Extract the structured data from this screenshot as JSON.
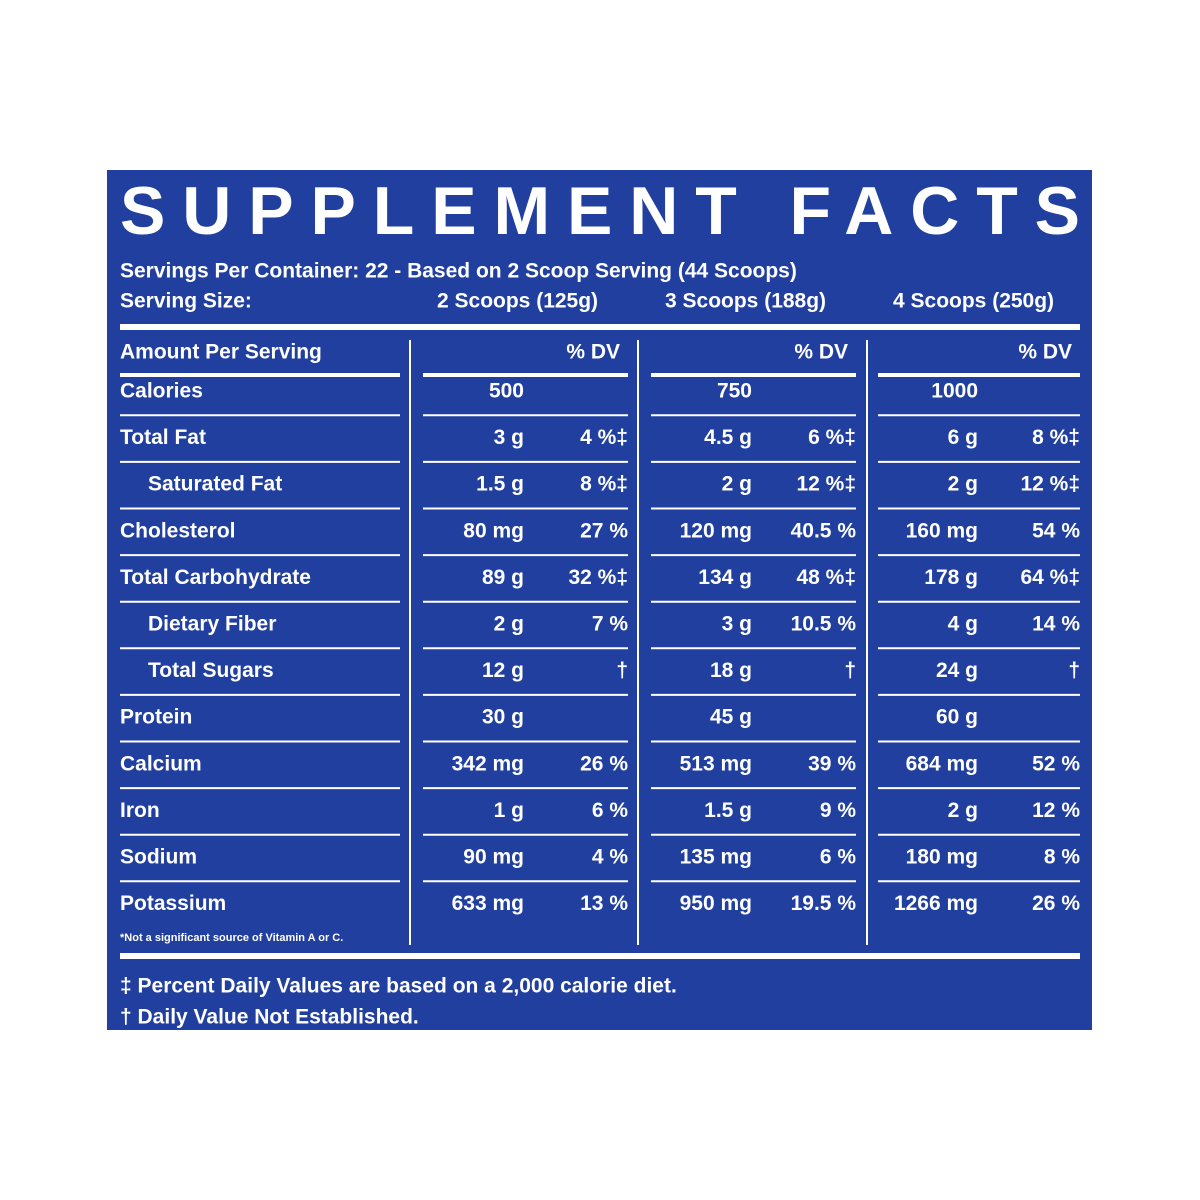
{
  "header": {
    "title": "SUPPLEMENT FACTS",
    "servings": "Servings Per Container: 22 - Based on 2 Scoop Serving (44 Scoops)",
    "serving_size_label": "Serving Size:"
  },
  "table": {
    "columns": [
      {
        "serving": "2 Scoops (125g)",
        "dv_header": "% DV"
      },
      {
        "serving": "3 Scoops (188g)",
        "dv_header": "% DV"
      },
      {
        "serving": "4 Scoops (250g)",
        "dv_header": "% DV"
      }
    ],
    "row_header": "Amount Per Serving",
    "rows": [
      {
        "name": "Calories",
        "indent": false,
        "cells": [
          [
            "500",
            null
          ],
          [
            "750",
            null
          ],
          [
            "1000",
            null
          ]
        ]
      },
      {
        "name": "Total Fat",
        "indent": false,
        "cells": [
          [
            "3 g",
            "4 %‡"
          ],
          [
            "4.5 g",
            "6 %‡"
          ],
          [
            "6 g",
            "8 %‡"
          ]
        ]
      },
      {
        "name": "Saturated Fat",
        "indent": true,
        "cells": [
          [
            "1.5 g",
            "8 %‡"
          ],
          [
            "2 g",
            "12 %‡"
          ],
          [
            "2 g",
            "12 %‡"
          ]
        ]
      },
      {
        "name": "Cholesterol",
        "indent": false,
        "cells": [
          [
            "80 mg",
            "27 %"
          ],
          [
            "120 mg",
            "40.5 %"
          ],
          [
            "160 mg",
            "54 %"
          ]
        ]
      },
      {
        "name": "Total Carbohydrate",
        "indent": false,
        "cells": [
          [
            "89 g",
            "32 %‡"
          ],
          [
            "134 g",
            "48 %‡"
          ],
          [
            "178 g",
            "64 %‡"
          ]
        ]
      },
      {
        "name": "Dietary Fiber",
        "indent": true,
        "cells": [
          [
            "2 g",
            "7 %"
          ],
          [
            "3 g",
            "10.5 %"
          ],
          [
            "4 g",
            "14 %"
          ]
        ]
      },
      {
        "name": "Total Sugars",
        "indent": true,
        "cells": [
          [
            "12 g",
            "†"
          ],
          [
            "18 g",
            "†"
          ],
          [
            "24 g",
            "†"
          ]
        ]
      },
      {
        "name": "Protein",
        "indent": false,
        "cells": [
          [
            "30 g",
            null
          ],
          [
            "45 g",
            null
          ],
          [
            "60 g",
            null
          ]
        ]
      },
      {
        "name": "Calcium",
        "indent": false,
        "cells": [
          [
            "342 mg",
            "26 %"
          ],
          [
            "513 mg",
            "39 %"
          ],
          [
            "684 mg",
            "52 %"
          ]
        ]
      },
      {
        "name": "Iron",
        "indent": false,
        "cells": [
          [
            "1 g",
            "6 %"
          ],
          [
            "1.5 g",
            "9 %"
          ],
          [
            "2 g",
            "12 %"
          ]
        ]
      },
      {
        "name": "Sodium",
        "indent": false,
        "cells": [
          [
            "90 mg",
            "4 %"
          ],
          [
            "135 mg",
            "6 %"
          ],
          [
            "180 mg",
            "8 %"
          ]
        ]
      },
      {
        "name": "Potassium",
        "indent": false,
        "cells": [
          [
            "633 mg",
            "13 %"
          ],
          [
            "950 mg",
            "19.5 %"
          ],
          [
            "1266 mg",
            "26 %"
          ]
        ]
      }
    ],
    "note": "*Not a significant source of Vitamin A or C."
  },
  "footnotes": [
    "‡ Percent Daily Values are based on a 2,000 calorie diet.",
    "† Daily Value Not Established."
  ]
}
